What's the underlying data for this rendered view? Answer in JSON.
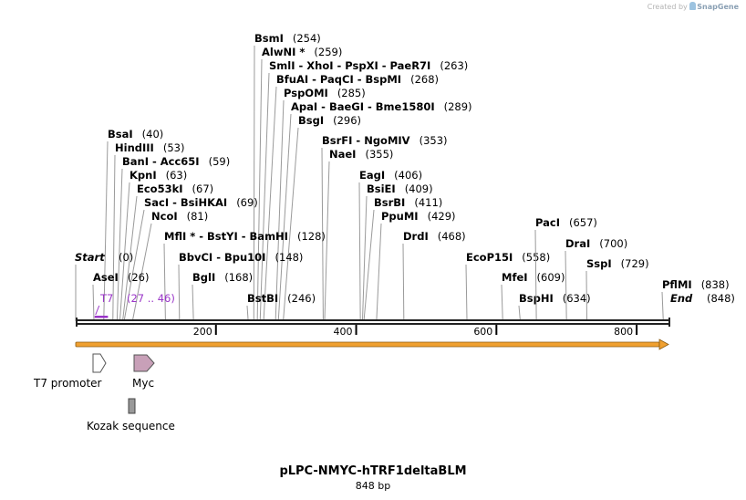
{
  "credit": {
    "prefix": "Created by",
    "brand": "SnapGene"
  },
  "map": {
    "name": "pLPC-NMYC-hTRF1deltaBLM",
    "length_label": "848 bp",
    "length": 848,
    "start_label": "Start",
    "start_pos": "(0)",
    "end_label": "End",
    "end_pos": "(848)"
  },
  "ticks": [
    {
      "value": 200,
      "label": "200"
    },
    {
      "value": 400,
      "label": "400"
    },
    {
      "value": 600,
      "label": "600"
    },
    {
      "value": 800,
      "label": "800"
    }
  ],
  "sites": [
    {
      "text": "BsmI",
      "pos": "(254)",
      "bp": 254
    },
    {
      "text": "AlwNI *",
      "pos": "(259)",
      "bp": 259
    },
    {
      "text": "SmlI  - XhoI  - PspXI  - PaeR7I",
      "pos": "(263)",
      "bp": 263
    },
    {
      "text": "BfuAI  - PaqCI  - BspMI",
      "pos": "(268)",
      "bp": 268
    },
    {
      "text": "PspOMI",
      "pos": "(285)",
      "bp": 285
    },
    {
      "text": "ApaI  - BaeGI  - Bme1580I",
      "pos": "(289)",
      "bp": 289
    },
    {
      "text": "BsgI",
      "pos": "(296)",
      "bp": 296
    },
    {
      "text": "BsrFI  - NgoMIV",
      "pos": "(353)",
      "bp": 353
    },
    {
      "text": "NaeI",
      "pos": "(355)",
      "bp": 355
    },
    {
      "text": "BsaI",
      "pos": "(40)",
      "bp": 40
    },
    {
      "text": "HindIII",
      "pos": "(53)",
      "bp": 53
    },
    {
      "text": "BanI  - Acc65I",
      "pos": "(59)",
      "bp": 59
    },
    {
      "text": "KpnI",
      "pos": "(63)",
      "bp": 63
    },
    {
      "text": "Eco53kI",
      "pos": "(67)",
      "bp": 67
    },
    {
      "text": "SacI  - BsiHKAI",
      "pos": "(69)",
      "bp": 69
    },
    {
      "text": "NcoI",
      "pos": "(81)",
      "bp": 81
    },
    {
      "text": "MflI *  - BstYI  - BamHI",
      "pos": "(128)",
      "bp": 128
    },
    {
      "text": "BbvCI  - Bpu10I",
      "pos": "(148)",
      "bp": 148
    },
    {
      "text": "BglI",
      "pos": "(168)",
      "bp": 168
    },
    {
      "text": "BstBI",
      "pos": "(246)",
      "bp": 246
    },
    {
      "text": "AseI",
      "pos": "(26)",
      "bp": 26
    },
    {
      "text": "EagI",
      "pos": "(406)",
      "bp": 406
    },
    {
      "text": "BsiEI",
      "pos": "(409)",
      "bp": 409
    },
    {
      "text": "BsrBI",
      "pos": "(411)",
      "bp": 411
    },
    {
      "text": "PpuMI",
      "pos": "(429)",
      "bp": 429
    },
    {
      "text": "DrdI",
      "pos": "(468)",
      "bp": 468
    },
    {
      "text": "EcoP15I",
      "pos": "(558)",
      "bp": 558
    },
    {
      "text": "MfeI",
      "pos": "(609)",
      "bp": 609
    },
    {
      "text": "BspHI",
      "pos": "(634)",
      "bp": 634
    },
    {
      "text": "PacI",
      "pos": "(657)",
      "bp": 657
    },
    {
      "text": "DraI",
      "pos": "(700)",
      "bp": 700
    },
    {
      "text": "SspI",
      "pos": "(729)",
      "bp": 729
    },
    {
      "text": "PflMI",
      "pos": "(838)",
      "bp": 838
    }
  ],
  "primer": {
    "name": "T7",
    "range": "(27 .. 46)",
    "start": 27,
    "end": 46,
    "color": "#9a35c8"
  },
  "features": [
    {
      "name": "T7 promoter",
      "kind": "promoter",
      "color": "#ffffff"
    },
    {
      "name": "Myc",
      "kind": "arrow",
      "color": "#c8a0b8"
    },
    {
      "name": "Kozak sequence",
      "kind": "box",
      "color": "#999999"
    }
  ],
  "orf_color": "#f0a030"
}
